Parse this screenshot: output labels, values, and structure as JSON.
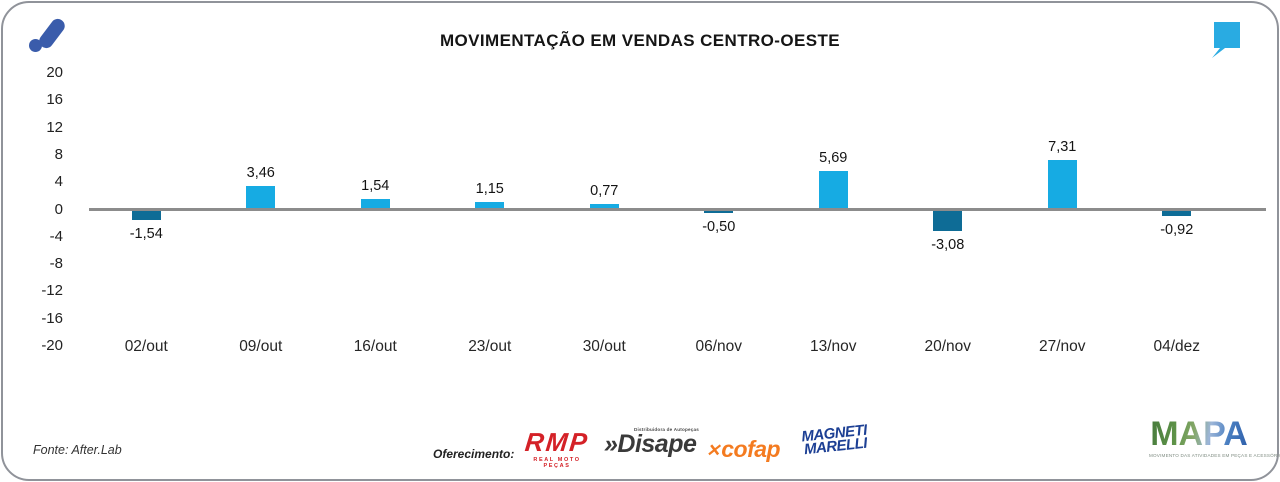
{
  "header": {
    "title": "MOVIMENTAÇÃO EM VENDAS CENTRO-OESTE"
  },
  "icons": {
    "afterlab_logo": "afterlab-a-mark",
    "quote_mark": "quote-comma",
    "cofap_x": "✕"
  },
  "colors": {
    "positive_bar": "#16abe3",
    "negative_bar": "#0e6c96",
    "zero_line": "#8c8c8c",
    "brand_blue": "#3a5cab",
    "quote_cyan": "#29abe2",
    "rmp_red": "#d42127",
    "cofap_orange": "#f47b20",
    "magneti_navy": "#1c3f94"
  },
  "chart_data": {
    "type": "bar",
    "title": "MOVIMENTAÇÃO EM VENDAS CENTRO-OESTE",
    "xlabel": "",
    "ylabel": "",
    "categories": [
      "02/out",
      "09/out",
      "16/out",
      "23/out",
      "30/out",
      "06/nov",
      "13/nov",
      "20/nov",
      "27/nov",
      "04/dez"
    ],
    "values": [
      -1.54,
      3.46,
      1.54,
      1.15,
      0.77,
      -0.5,
      5.69,
      -3.08,
      7.31,
      -0.92
    ],
    "value_labels": [
      "-1,54",
      "3,46",
      "1,54",
      "1,15",
      "0,77",
      "-0,50",
      "5,69",
      "-3,08",
      "7,31",
      "-0,92"
    ],
    "ylim": [
      -20,
      20
    ],
    "yticks": [
      20,
      16,
      12,
      8,
      4,
      0,
      -4,
      -8,
      -12,
      -16,
      -20
    ],
    "grid": false,
    "legend": false,
    "positive_color": "#16abe3",
    "negative_color": "#0e6c96"
  },
  "footer": {
    "source": "Fonte: After.Lab",
    "sponsor_label": "Oferecimento:",
    "sponsors": [
      {
        "name": "RMP",
        "subtitle": "REAL MOTO PEÇAS"
      },
      {
        "prefix": "»",
        "name": "Disape",
        "subtitle": "Distribuidora de Autopeças"
      },
      {
        "name": "cofap"
      },
      {
        "line1": "MAGNETI",
        "line2": "MARELLI"
      }
    ],
    "brand": {
      "name": "MAPA",
      "subtitle": "MOVIMENTO DAS ATIVIDADES EM PEÇAS E ACESSÓRIOS"
    }
  }
}
